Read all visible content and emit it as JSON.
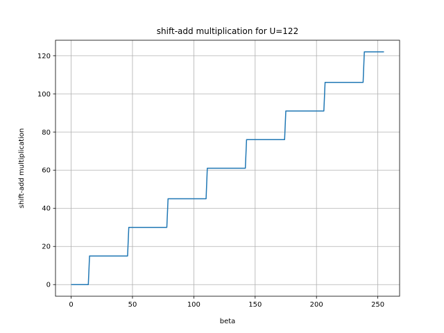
{
  "chart_data": {
    "type": "line",
    "title": "shift-add multiplication for U=122",
    "xlabel": "beta",
    "ylabel": "shift-add multiplication",
    "xlim": [
      -12.75,
      267.75
    ],
    "ylim": [
      -6.1,
      128.1
    ],
    "xticks": [
      0,
      50,
      100,
      150,
      200,
      250
    ],
    "yticks": [
      0,
      20,
      40,
      60,
      80,
      100,
      120
    ],
    "grid": true,
    "series": [
      {
        "color": "#1f77b4",
        "x": [
          0,
          14,
          15,
          46,
          47,
          78,
          79,
          110,
          111,
          142,
          143,
          174,
          175,
          206,
          207,
          238,
          239,
          255
        ],
        "y": [
          0,
          0,
          15,
          15,
          30,
          30,
          45,
          45,
          61,
          61,
          76,
          76,
          91,
          91,
          106,
          106,
          122,
          122
        ]
      }
    ]
  }
}
